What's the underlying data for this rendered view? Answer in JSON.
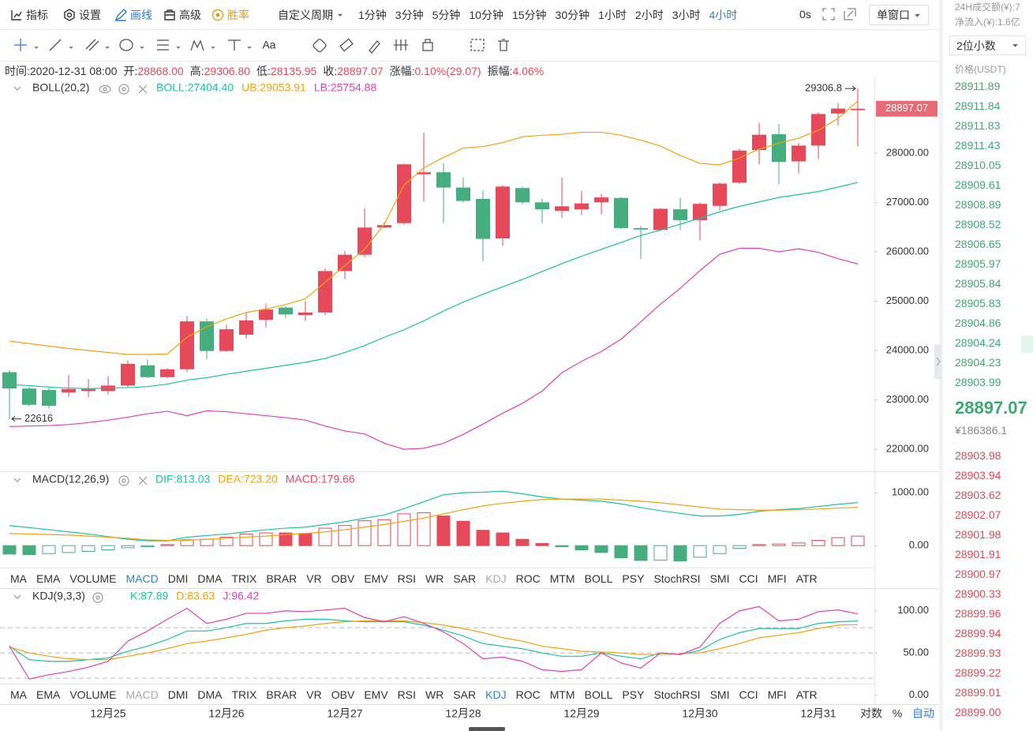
{
  "toolbar": {
    "tools": [
      "指标",
      "设置",
      "画线",
      "高级",
      "胜率"
    ],
    "custom_period": "自定义周期",
    "periods": [
      "1分钟",
      "3分钟",
      "5分钟",
      "10分钟",
      "15分钟",
      "30分钟",
      "1小时",
      "2小时",
      "3小时",
      "4小时"
    ],
    "selected_period": 9,
    "countdown": "0s",
    "window_mode": "单窗口"
  },
  "drawing_tools": {
    "text_tool": "Aa"
  },
  "info_bar": [
    {
      "label": "时间:",
      "value": "2020-12-31 08:00"
    },
    {
      "label": "开:",
      "value": "28868.00"
    },
    {
      "label": "高:",
      "value": "29306.80"
    },
    {
      "label": "低:",
      "value": "28135.95"
    },
    {
      "label": "收:",
      "value": "28897.07"
    },
    {
      "label": "涨幅:",
      "value": "0.10%(29.07)"
    },
    {
      "label": "振幅:",
      "value": "4.06%"
    }
  ],
  "indicator_tabs": [
    "MA",
    "EMA",
    "VOLUME",
    "MACD",
    "DMI",
    "DMA",
    "TRIX",
    "BRAR",
    "VR",
    "OBV",
    "EMV",
    "RSI",
    "WR",
    "SAR",
    "KDJ",
    "ROC",
    "MTM",
    "BOLL",
    "PSY",
    "StochRSI",
    "SMI",
    "CCI",
    "MFI",
    "ATR"
  ],
  "tab_rows": [
    {
      "active": 3,
      "muted": 14
    },
    {
      "active": 14,
      "muted": 3
    }
  ],
  "chart_data": [
    {
      "type": "candlestick",
      "title": "BOLL(20,2)",
      "categories": [
        null,
        null,
        null,
        null,
        null,
        "12月25",
        null,
        null,
        null,
        null,
        null,
        "12月26",
        null,
        null,
        null,
        null,
        null,
        "12月27",
        null,
        null,
        null,
        null,
        null,
        "12月28",
        null,
        null,
        null,
        null,
        null,
        "12月29",
        null,
        null,
        null,
        null,
        null,
        "12月30",
        null,
        null,
        null,
        null,
        null,
        "12月31",
        null,
        null
      ],
      "open": [
        23560,
        23230,
        23200,
        23150,
        23180,
        23180,
        23290,
        23700,
        23460,
        23620,
        24590,
        23990,
        24320,
        24620,
        24870,
        24720,
        24770,
        25610,
        25940,
        26490,
        26580,
        27570,
        27610,
        27300,
        27070,
        26270,
        27290,
        27000,
        26830,
        26860,
        27000,
        27090,
        26480,
        26440,
        26860,
        26640,
        26930,
        27400,
        28060,
        28380,
        27830,
        28150,
        28800,
        28868
      ],
      "high": [
        23600,
        23260,
        23260,
        23500,
        23420,
        23480,
        23800,
        23820,
        23640,
        24700,
        24650,
        24520,
        24780,
        24950,
        24900,
        25000,
        25660,
        26020,
        26880,
        26600,
        27790,
        28410,
        27800,
        27500,
        27240,
        27350,
        27320,
        27070,
        27500,
        27230,
        27170,
        27110,
        26520,
        26880,
        27090,
        27000,
        27410,
        28090,
        28610,
        28590,
        28200,
        28820,
        29010,
        29306.8
      ],
      "low": [
        22616,
        22870,
        22830,
        23060,
        23050,
        23110,
        23250,
        23440,
        23440,
        23560,
        23820,
        23980,
        24240,
        24470,
        24660,
        24600,
        24720,
        25450,
        25890,
        26480,
        26550,
        27020,
        26580,
        27000,
        25810,
        26120,
        26960,
        26580,
        26690,
        26740,
        26760,
        26460,
        25850,
        26420,
        26440,
        26230,
        26840,
        27370,
        27770,
        27370,
        27590,
        27880,
        28560,
        28135.95
      ],
      "close": [
        23230,
        22900,
        22880,
        23220,
        23220,
        23290,
        23730,
        23460,
        23620,
        24590,
        23990,
        24430,
        24610,
        24830,
        24730,
        24770,
        25610,
        25940,
        26490,
        26540,
        27770,
        27610,
        27300,
        27030,
        26260,
        27320,
        27000,
        26860,
        26920,
        26980,
        27100,
        26480,
        26450,
        26870,
        26640,
        26970,
        27380,
        28050,
        28370,
        27820,
        28150,
        28790,
        28900,
        28897.07
      ],
      "up_color": "#e5495a",
      "down_color": "#46ad7e",
      "series": [
        {
          "name": "BOLL:27404.40",
          "color": "#19c4a0",
          "values": [
            23310,
            23290,
            23260,
            23240,
            23230,
            23240,
            23250,
            23270,
            23320,
            23400,
            23450,
            23520,
            23580,
            23640,
            23700,
            23760,
            23840,
            23960,
            24100,
            24270,
            24420,
            24600,
            24800,
            24980,
            25140,
            25290,
            25440,
            25600,
            25760,
            25910,
            26050,
            26190,
            26330,
            26440,
            26560,
            26680,
            26810,
            26920,
            27010,
            27100,
            27160,
            27220,
            27310,
            27404.4
          ]
        },
        {
          "name": "UB:29053.91",
          "color": "#f2a20c",
          "values": [
            24190,
            24140,
            24090,
            24040,
            24000,
            23960,
            23920,
            23920,
            23930,
            24270,
            24480,
            24640,
            24770,
            24840,
            24930,
            25050,
            25380,
            25720,
            26050,
            26560,
            27350,
            27700,
            27910,
            28100,
            28130,
            28210,
            28330,
            28360,
            28380,
            28420,
            28420,
            28360,
            28260,
            28140,
            27950,
            27790,
            27760,
            27900,
            28080,
            28200,
            28300,
            28460,
            28700,
            29053.91
          ]
        },
        {
          "name": "LB:25754.88",
          "color": "#e23fb6",
          "values": [
            22460,
            22470,
            22480,
            22500,
            22540,
            22590,
            22650,
            22720,
            22770,
            22680,
            22780,
            22760,
            22720,
            22680,
            22640,
            22590,
            22470,
            22370,
            22310,
            22120,
            22000,
            22020,
            22120,
            22300,
            22510,
            22730,
            22930,
            23180,
            23550,
            23780,
            23980,
            24230,
            24580,
            24940,
            25260,
            25620,
            25950,
            26070,
            26070,
            26000,
            26060,
            25990,
            25860,
            25754.88
          ]
        }
      ],
      "ylim": [
        21570,
        29500
      ],
      "yticks": [
        {
          "value": 22000,
          "label": "22000.00"
        },
        {
          "value": 23000,
          "label": "23000.00"
        },
        {
          "value": 24000,
          "label": "24000.00"
        },
        {
          "value": 25000,
          "label": "25000.00"
        },
        {
          "value": 26000,
          "label": "26000.00"
        },
        {
          "value": 27000,
          "label": "27000.00"
        },
        {
          "value": 28000,
          "label": "28000.00"
        }
      ],
      "grid": false
    },
    {
      "type": "macd",
      "title": "MACD(12,26,9)",
      "series": [
        {
          "name": "DIF:813.03",
          "color": "#19c4a0",
          "style": "line",
          "values": [
            380,
            340,
            300,
            260,
            220,
            170,
            120,
            90,
            90,
            160,
            190,
            220,
            260,
            300,
            330,
            350,
            400,
            450,
            520,
            580,
            700,
            830,
            960,
            1000,
            1010,
            1030,
            980,
            920,
            880,
            860,
            840,
            790,
            720,
            660,
            610,
            560,
            560,
            590,
            650,
            680,
            700,
            740,
            780,
            813.03
          ]
        },
        {
          "name": "DEA:723.20",
          "color": "#f2a20c",
          "style": "line",
          "values": [
            230,
            220,
            210,
            200,
            180,
            160,
            140,
            110,
            100,
            100,
            120,
            140,
            160,
            180,
            210,
            230,
            260,
            300,
            350,
            400,
            460,
            520,
            600,
            680,
            750,
            800,
            840,
            870,
            880,
            880,
            880,
            860,
            840,
            810,
            770,
            730,
            690,
            680,
            670,
            670,
            680,
            690,
            710,
            723.2
          ]
        },
        {
          "name": "MACD:179.66",
          "color": "#e5495a",
          "negative_color": "#46ad7e",
          "style": "bar",
          "values": [
            -160,
            -170,
            -150,
            -130,
            -110,
            -80,
            -40,
            -20,
            20,
            110,
            120,
            160,
            220,
            240,
            240,
            230,
            330,
            380,
            470,
            490,
            600,
            620,
            560,
            460,
            290,
            240,
            120,
            40,
            -20,
            -80,
            -130,
            -230,
            -280,
            -275,
            -290,
            -220,
            -150,
            -50,
            20,
            30,
            50,
            100,
            150,
            179.66
          ]
        }
      ],
      "ylim": [
        -400,
        1390
      ],
      "yticks": [
        {
          "value": 0,
          "label": "0.00"
        },
        {
          "value": 1000,
          "label": "1000.00"
        }
      ]
    },
    {
      "type": "line",
      "title": "KDJ(9,3,3)",
      "series": [
        {
          "name": "K:87.89",
          "color": "#19c4a0",
          "values": [
            58,
            42,
            40,
            40,
            42,
            44,
            52,
            58,
            66,
            76,
            76,
            80,
            85,
            85,
            88,
            90,
            90,
            88,
            87,
            87,
            87,
            83,
            77,
            70,
            61,
            58,
            55,
            50,
            46,
            46,
            50,
            46,
            43,
            50,
            48,
            53,
            66,
            74,
            79,
            79,
            79,
            85,
            87,
            87.89
          ]
        },
        {
          "name": "D:83.63",
          "color": "#f2a20c",
          "values": [
            57,
            50,
            46,
            43,
            42,
            42,
            46,
            50,
            55,
            61,
            64,
            68,
            72,
            77,
            80,
            82,
            85,
            87,
            88,
            88,
            88,
            86,
            83,
            79,
            74,
            68,
            64,
            58,
            55,
            52,
            51,
            50,
            48,
            48,
            49,
            50,
            55,
            61,
            68,
            71,
            74,
            79,
            83,
            83.63
          ]
        },
        {
          "name": "J:96.42",
          "color": "#e23fb6",
          "values": [
            58,
            19,
            24,
            28,
            33,
            40,
            64,
            76,
            90,
            103,
            85,
            90,
            97,
            97,
            100,
            99,
            101,
            103,
            92,
            87,
            93,
            85,
            75,
            61,
            43,
            45,
            40,
            30,
            28,
            30,
            50,
            38,
            32,
            50,
            48,
            57,
            85,
            100,
            105,
            88,
            90,
            99,
            101,
            96.42
          ]
        }
      ],
      "reference_lines": [
        20,
        50,
        80
      ],
      "ylim": [
        -9,
        126
      ],
      "yticks": [
        {
          "value": 0,
          "label": "0.00"
        },
        {
          "value": 50,
          "label": "50.00"
        },
        {
          "value": 100,
          "label": "100.00"
        }
      ]
    }
  ],
  "footer": {
    "log": "对数",
    "percent": "%",
    "auto": "自动"
  },
  "side_panel": {
    "turnover": "24H成交额(¥):7",
    "net_inflow": "净流入(¥):1.6亿",
    "precision": "2位小数",
    "price_header": "价格(USDT)",
    "asks": [
      "28911.89",
      "28911.84",
      "28911.83",
      "28911.43",
      "28910.05",
      "28909.61",
      "28908.89",
      "28908.52",
      "28906.65",
      "28905.97",
      "28905.84",
      "28905.83",
      "28904.86",
      "28904.24",
      "28904.23",
      "28903.99"
    ],
    "last_price": "28897.07",
    "last_price_cny": "¥186386.1",
    "bids": [
      "28903.98",
      "28903.94",
      "28903.62",
      "28902.07",
      "28901.98",
      "28901.91",
      "28900.97",
      "28900.33",
      "28899.96",
      "28899.94",
      "28899.93",
      "28899.22",
      "28899.01",
      "28899.00"
    ]
  }
}
